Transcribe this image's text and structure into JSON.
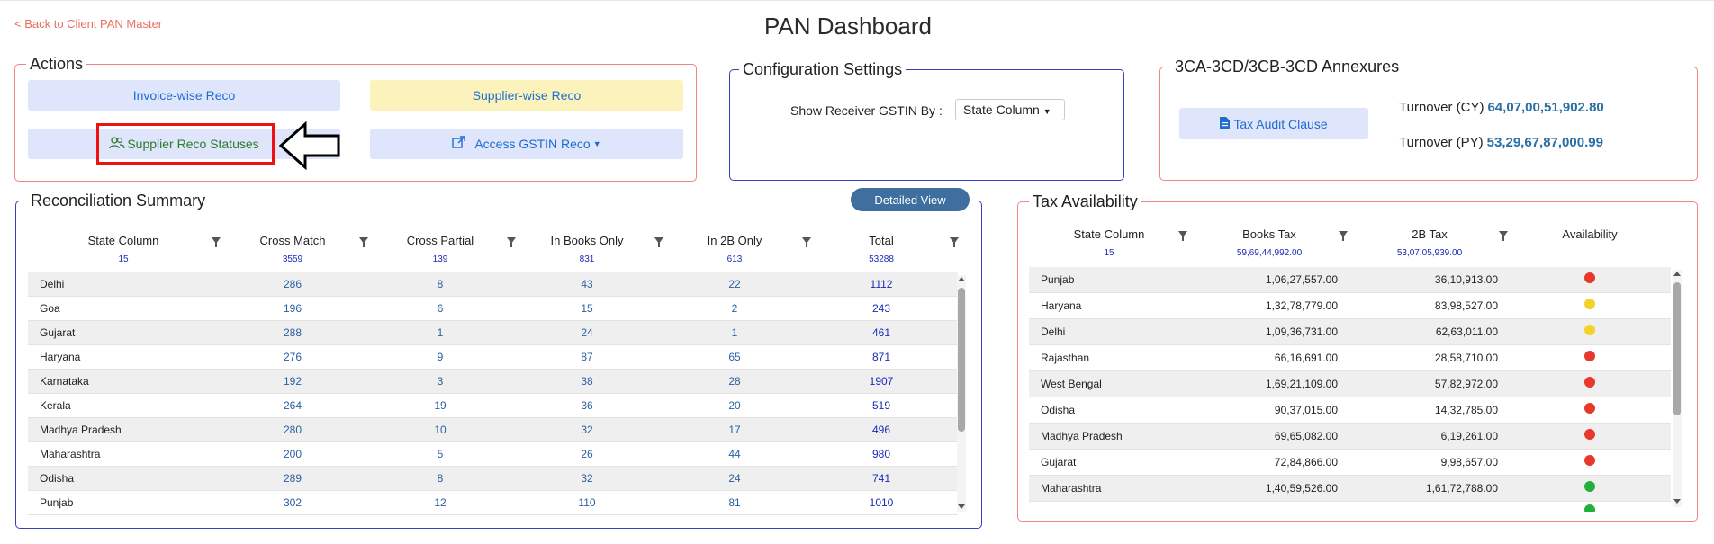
{
  "header": {
    "back_link": "< Back to Client PAN Master",
    "title": "PAN Dashboard"
  },
  "actions": {
    "legend": "Actions",
    "invoice_wise": "Invoice-wise Reco",
    "supplier_wise": "Supplier-wise Reco",
    "supplier_statuses": "Supplier Reco Statuses",
    "access_gstin": "Access GSTIN Reco"
  },
  "config": {
    "legend": "Configuration Settings",
    "label": "Show Receiver GSTIN By :",
    "select_value": "State Column"
  },
  "annexures": {
    "legend": "3CA-3CD/3CB-3CD Annexures",
    "tax_audit": "Tax Audit Clause",
    "turnover_cy_label": "Turnover (CY)",
    "turnover_cy": "64,07,00,51,902.80",
    "turnover_py_label": "Turnover (PY)",
    "turnover_py": "53,29,67,87,000.99"
  },
  "reco": {
    "legend": "Reconciliation Summary",
    "detailed_view": "Detailed View",
    "columns": [
      {
        "label": "State Column",
        "sub": "15"
      },
      {
        "label": "Cross Match",
        "sub": "3559"
      },
      {
        "label": "Cross Partial",
        "sub": "139"
      },
      {
        "label": "In Books Only",
        "sub": "831"
      },
      {
        "label": "In 2B Only",
        "sub": "613"
      },
      {
        "label": "Total",
        "sub": "53288"
      }
    ],
    "rows": [
      [
        "Delhi",
        "286",
        "8",
        "43",
        "22",
        "1112"
      ],
      [
        "Goa",
        "196",
        "6",
        "15",
        "2",
        "243"
      ],
      [
        "Gujarat",
        "288",
        "1",
        "24",
        "1",
        "461"
      ],
      [
        "Haryana",
        "276",
        "9",
        "87",
        "65",
        "871"
      ],
      [
        "Karnataka",
        "192",
        "3",
        "38",
        "28",
        "1907"
      ],
      [
        "Kerala",
        "264",
        "19",
        "36",
        "20",
        "519"
      ],
      [
        "Madhya Pradesh",
        "280",
        "10",
        "32",
        "17",
        "496"
      ],
      [
        "Maharashtra",
        "200",
        "5",
        "26",
        "44",
        "980"
      ],
      [
        "Odisha",
        "289",
        "8",
        "32",
        "24",
        "741"
      ],
      [
        "Punjab",
        "302",
        "12",
        "110",
        "81",
        "1010"
      ]
    ]
  },
  "tax": {
    "legend": "Tax Availability",
    "columns": [
      {
        "label": "State Column",
        "sub": "15"
      },
      {
        "label": "Books Tax",
        "sub": "59,69,44,992.00"
      },
      {
        "label": "2B Tax",
        "sub": "53,07,05,939.00"
      },
      {
        "label": "Availability",
        "sub": ""
      }
    ],
    "rows": [
      {
        "state": "Punjab",
        "books": "1,06,27,557.00",
        "b2": "36,10,913.00",
        "status": "red"
      },
      {
        "state": "Haryana",
        "books": "1,32,78,779.00",
        "b2": "83,98,527.00",
        "status": "yellow"
      },
      {
        "state": "Delhi",
        "books": "1,09,36,731.00",
        "b2": "62,63,011.00",
        "status": "yellow"
      },
      {
        "state": "Rajasthan",
        "books": "66,16,691.00",
        "b2": "28,58,710.00",
        "status": "red"
      },
      {
        "state": "West Bengal",
        "books": "1,69,21,109.00",
        "b2": "57,82,972.00",
        "status": "red"
      },
      {
        "state": "Odisha",
        "books": "90,37,015.00",
        "b2": "14,32,785.00",
        "status": "red"
      },
      {
        "state": "Madhya Pradesh",
        "books": "69,65,082.00",
        "b2": "6,19,261.00",
        "status": "red"
      },
      {
        "state": "Gujarat",
        "books": "72,84,866.00",
        "b2": "9,98,657.00",
        "status": "red"
      },
      {
        "state": "Maharashtra",
        "books": "1,40,59,526.00",
        "b2": "1,61,72,788.00",
        "status": "green"
      }
    ]
  },
  "colors": {
    "red": "#e8372b",
    "yellow": "#f3d22a",
    "green": "#22b03a"
  }
}
